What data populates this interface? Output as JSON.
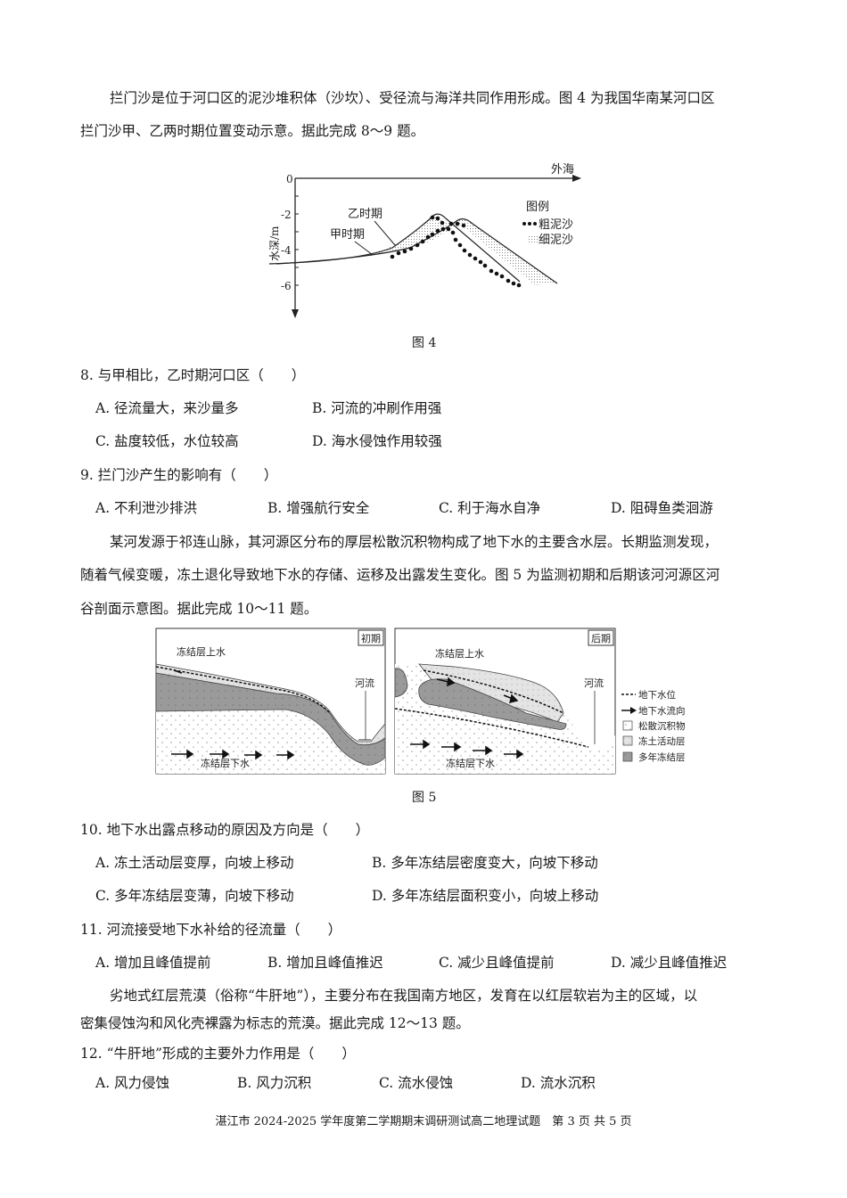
{
  "passage1": {
    "line1": "拦门沙是位于河口区的泥沙堆积体（沙坎）、受径流与海洋共同作用形成。图 4 为我国华南某河口区",
    "line2": "拦门沙甲、乙两时期位置变动示意。据此完成 8～9 题。"
  },
  "figure4": {
    "caption": "图 4",
    "y_axis_label": "水深/m",
    "y_ticks": [
      "0",
      "-2",
      "-4",
      "-6"
    ],
    "x_axis_label": "外海",
    "curve_labels": [
      "乙时期",
      "甲时期"
    ],
    "legend_title": "图例",
    "legend_items": [
      "粗泥沙",
      "细泥沙"
    ]
  },
  "q8": {
    "stem": "8. 与甲相比，乙时期河口区（　　）",
    "options": [
      "A.  径流量大，来沙量多",
      "B.  河流的冲刷作用强",
      "C.  盐度较低，水位较高",
      "D.  海水侵蚀作用较强"
    ]
  },
  "q9": {
    "stem": "9. 拦门沙产生的影响有（　　）",
    "options": [
      "A.  不利泄沙排洪",
      "B.  增强航行安全",
      "C.  利于海水自净",
      "D.  阻碍鱼类洄游"
    ]
  },
  "passage2": {
    "line1": "某河发源于祁连山脉，其河源区分布的厚层松散沉积物构成了地下水的主要含水层。长期监测发现，",
    "line2": "随着气候变暖，冻土退化导致地下水的存储、运移及出露发生变化。图 5 为监测初期和后期该河河源区河",
    "line3": "谷剖面示意图。据此完成 10～11 题。"
  },
  "figure5": {
    "caption": "图 5",
    "left_panel": {
      "tag": "初期",
      "upper_label": "冻结层上水",
      "river_label": "河流",
      "lower_label": "冻结层下水"
    },
    "right_panel": {
      "tag": "后期",
      "upper_label": "冻结层上水",
      "river_label": "河流",
      "lower_label": "冻结层下水"
    },
    "legend": [
      "地下水位",
      "地下水流向",
      "松散沉积物",
      "冻土活动层",
      "多年冻结层"
    ]
  },
  "q10": {
    "stem": "10. 地下水出露点移动的原因及方向是（　　）",
    "options": [
      "A.  冻土活动层变厚，向坡上移动",
      "B.  多年冻结层密度变大，向坡下移动",
      "C.  多年冻结层变薄，向坡下移动",
      "D.  多年冻结层面积变小，向坡上移动"
    ]
  },
  "q11": {
    "stem": "11. 河流接受地下水补给的径流量（　　）",
    "options": [
      "A.  增加且峰值提前",
      "B.  增加且峰值推迟",
      "C.  减少且峰值提前",
      "D.  减少且峰值推迟"
    ]
  },
  "passage3": {
    "line1": "劣地式红层荒漠（俗称“牛肝地”），主要分布在我国南方地区，发育在以红层软岩为主的区域，以",
    "line2": "密集侵蚀沟和风化壳裸露为标志的荒漠。据此完成 12～13 题。"
  },
  "q12": {
    "stem": "12. “牛肝地”形成的主要外力作用是（　　）",
    "options": [
      "A. 风力侵蚀",
      "B. 风力沉积",
      "C. 流水侵蚀",
      "D. 流水沉积"
    ]
  },
  "footer": "湛江市 2024-2025 学年度第二学期期末调研测试高二地理试题　第 3 页 共 5 页"
}
